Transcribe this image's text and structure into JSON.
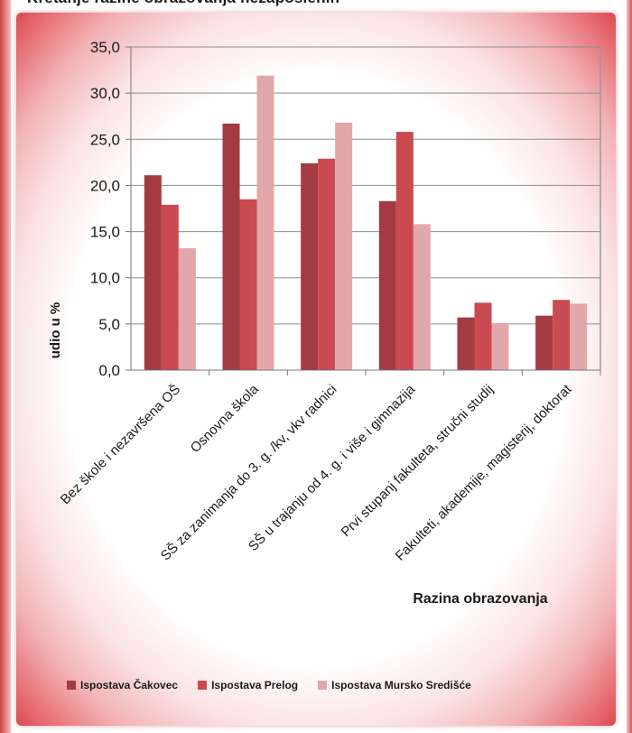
{
  "page": {
    "cut_title": "Kretanje razine obrazovanja nezaposlenih"
  },
  "chart_data": {
    "type": "bar",
    "categories": [
      "Bez škole i nezavršena OŠ",
      "Osnovna škola",
      "SŠ za zanimanja do 3. g. /kv, vkv radnici",
      "SŠ u trajanju od 4. g. i više i gimnazija",
      "Prvi stupanj fakulteta, stručni studij",
      "Fakulteti, akademije, magisterij, doktorat"
    ],
    "series": [
      {
        "name": "Ispostava Čakovec",
        "color": "#a33b43",
        "values": [
          21.1,
          26.7,
          22.4,
          18.3,
          5.7,
          5.9
        ]
      },
      {
        "name": "Ispostava Prelog",
        "color": "#c94a50",
        "values": [
          17.9,
          18.5,
          22.9,
          25.8,
          7.3,
          7.6
        ]
      },
      {
        "name": "Ispostava Mursko Središće",
        "color": "#e2a7aa",
        "values": [
          13.2,
          31.9,
          26.8,
          15.8,
          5.1,
          7.2
        ]
      }
    ],
    "xlabel": "Razina obrazovanja",
    "ylabel": "udio u %",
    "ylim": [
      0,
      35
    ],
    "yticks": [
      "0,0",
      "5,0",
      "10,0",
      "15,0",
      "20,0",
      "25,0",
      "30,0",
      "35,0"
    ],
    "grid": true,
    "legend_position": "bottom"
  }
}
